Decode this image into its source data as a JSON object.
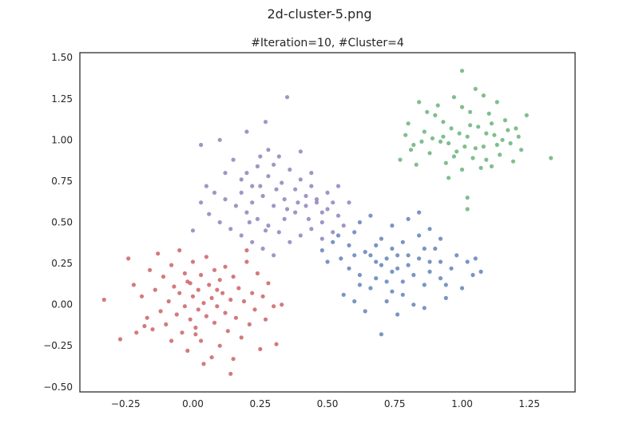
{
  "figure": {
    "suptitle": "2d-cluster-5.png"
  },
  "chart_data": {
    "type": "scatter",
    "title": "#Iteration=10, #Cluster=4",
    "xlabel": "",
    "ylabel": "",
    "xlim": [
      -0.42,
      1.42
    ],
    "ylim": [
      -0.53,
      1.53
    ],
    "x_ticks": [
      -0.25,
      0.0,
      0.25,
      0.5,
      0.75,
      1.0,
      1.25
    ],
    "x_tick_labels": [
      "−0.25",
      "0.00",
      "0.25",
      "0.50",
      "0.75",
      "1.00",
      "1.25"
    ],
    "y_ticks": [
      -0.5,
      -0.25,
      0.0,
      0.25,
      0.5,
      0.75,
      1.0,
      1.25,
      1.5
    ],
    "y_tick_labels": [
      "−0.50",
      "−0.25",
      "0.00",
      "0.25",
      "0.50",
      "0.75",
      "1.00",
      "1.25",
      "1.50"
    ],
    "grid": false,
    "legend": "none",
    "series": [
      {
        "color": "#c44e52",
        "points": [
          [
            -0.33,
            0.03
          ],
          [
            -0.27,
            -0.21
          ],
          [
            -0.24,
            0.28
          ],
          [
            -0.22,
            0.12
          ],
          [
            -0.21,
            -0.17
          ],
          [
            -0.19,
            0.05
          ],
          [
            -0.17,
            -0.08
          ],
          [
            -0.16,
            0.21
          ],
          [
            -0.15,
            -0.15
          ],
          [
            -0.14,
            0.09
          ],
          [
            -0.13,
            0.31
          ],
          [
            -0.12,
            -0.04
          ],
          [
            -0.11,
            0.17
          ],
          [
            -0.1,
            -0.12
          ],
          [
            -0.09,
            0.02
          ],
          [
            -0.08,
            0.24
          ],
          [
            -0.08,
            -0.22
          ],
          [
            -0.07,
            0.11
          ],
          [
            -0.06,
            -0.06
          ],
          [
            -0.05,
            0.33
          ],
          [
            -0.05,
            0.07
          ],
          [
            -0.04,
            -0.17
          ],
          [
            -0.03,
            0.19
          ],
          [
            -0.03,
            -0.01
          ],
          [
            -0.02,
            -0.28
          ],
          [
            -0.01,
            0.13
          ],
          [
            -0.01,
            -0.09
          ],
          [
            0.0,
            0.05
          ],
          [
            0.0,
            0.26
          ],
          [
            0.01,
            -0.14
          ],
          [
            0.02,
            0.09
          ],
          [
            0.02,
            -0.03
          ],
          [
            0.03,
            0.18
          ],
          [
            0.03,
            -0.22
          ],
          [
            0.04,
            0.01
          ],
          [
            0.05,
            0.29
          ],
          [
            0.05,
            -0.07
          ],
          [
            0.06,
            0.12
          ],
          [
            0.07,
            -0.32
          ],
          [
            0.07,
            0.04
          ],
          [
            0.08,
            0.21
          ],
          [
            0.08,
            -0.11
          ],
          [
            0.09,
            -0.01
          ],
          [
            0.1,
            0.15
          ],
          [
            0.1,
            -0.25
          ],
          [
            0.11,
            0.07
          ],
          [
            0.12,
            -0.05
          ],
          [
            0.12,
            0.23
          ],
          [
            0.13,
            -0.16
          ],
          [
            0.14,
            0.03
          ],
          [
            0.14,
            -0.42
          ],
          [
            0.15,
            0.17
          ],
          [
            0.16,
            -0.08
          ],
          [
            0.17,
            0.1
          ],
          [
            0.18,
            -0.2
          ],
          [
            0.19,
            0.02
          ],
          [
            0.2,
            0.26
          ],
          [
            0.21,
            -0.12
          ],
          [
            0.22,
            0.07
          ],
          [
            0.23,
            -0.03
          ],
          [
            0.24,
            0.19
          ],
          [
            0.25,
            -0.27
          ],
          [
            0.26,
            0.05
          ],
          [
            0.27,
            -0.09
          ],
          [
            0.28,
            0.13
          ],
          [
            0.3,
            -0.01
          ],
          [
            0.31,
            -0.24
          ],
          [
            0.33,
            0.0
          ],
          [
            0.2,
            0.33
          ],
          [
            0.15,
            -0.33
          ],
          [
            -0.18,
            -0.13
          ],
          [
            0.04,
            -0.36
          ],
          [
            -0.02,
            0.14
          ],
          [
            0.09,
            0.09
          ],
          [
            0.01,
            -0.18
          ]
        ]
      },
      {
        "color": "#8172b2",
        "points": [
          [
            0.03,
            0.97
          ],
          [
            0.1,
            1.0
          ],
          [
            0.2,
            1.05
          ],
          [
            0.27,
            1.11
          ],
          [
            0.35,
            1.26
          ],
          [
            0.4,
            0.93
          ],
          [
            0.44,
            0.8
          ],
          [
            0.3,
            0.85
          ],
          [
            0.25,
            0.9
          ],
          [
            0.15,
            0.88
          ],
          [
            0.12,
            0.8
          ],
          [
            0.18,
            0.76
          ],
          [
            0.22,
            0.72
          ],
          [
            0.28,
            0.78
          ],
          [
            0.33,
            0.74
          ],
          [
            0.38,
            0.7
          ],
          [
            0.42,
            0.66
          ],
          [
            0.46,
            0.62
          ],
          [
            0.5,
            0.58
          ],
          [
            0.54,
            0.54
          ],
          [
            0.48,
            0.5
          ],
          [
            0.44,
            0.46
          ],
          [
            0.4,
            0.42
          ],
          [
            0.36,
            0.38
          ],
          [
            0.32,
            0.44
          ],
          [
            0.28,
            0.48
          ],
          [
            0.24,
            0.52
          ],
          [
            0.2,
            0.56
          ],
          [
            0.16,
            0.6
          ],
          [
            0.12,
            0.64
          ],
          [
            0.08,
            0.68
          ],
          [
            0.05,
            0.72
          ],
          [
            0.03,
            0.62
          ],
          [
            0.06,
            0.55
          ],
          [
            0.1,
            0.5
          ],
          [
            0.14,
            0.46
          ],
          [
            0.18,
            0.42
          ],
          [
            0.22,
            0.38
          ],
          [
            0.26,
            0.34
          ],
          [
            0.3,
            0.3
          ],
          [
            0.34,
            0.52
          ],
          [
            0.38,
            0.56
          ],
          [
            0.42,
            0.6
          ],
          [
            0.46,
            0.64
          ],
          [
            0.5,
            0.68
          ],
          [
            0.54,
            0.72
          ],
          [
            0.58,
            0.62
          ],
          [
            0.56,
            0.48
          ],
          [
            0.52,
            0.44
          ],
          [
            0.48,
            0.4
          ],
          [
            0.34,
            0.64
          ],
          [
            0.3,
            0.6
          ],
          [
            0.26,
            0.66
          ],
          [
            0.22,
            0.62
          ],
          [
            0.18,
            0.68
          ],
          [
            0.36,
            0.82
          ],
          [
            0.32,
            0.9
          ],
          [
            0.28,
            0.94
          ],
          [
            0.24,
            0.84
          ],
          [
            0.2,
            0.8
          ],
          [
            0.4,
            0.76
          ],
          [
            0.44,
            0.72
          ],
          [
            0.48,
            0.56
          ],
          [
            0.52,
            0.62
          ],
          [
            0.0,
            0.45
          ],
          [
            0.27,
            0.45
          ],
          [
            0.35,
            0.58
          ],
          [
            0.31,
            0.7
          ],
          [
            0.39,
            0.62
          ],
          [
            0.25,
            0.72
          ],
          [
            0.21,
            0.5
          ],
          [
            0.43,
            0.52
          ]
        ]
      },
      {
        "color": "#4c72b0",
        "points": [
          [
            0.48,
            0.33
          ],
          [
            0.52,
            0.38
          ],
          [
            0.55,
            0.28
          ],
          [
            0.58,
            0.22
          ],
          [
            0.6,
            0.44
          ],
          [
            0.62,
            0.18
          ],
          [
            0.64,
            0.32
          ],
          [
            0.66,
            0.1
          ],
          [
            0.68,
            0.26
          ],
          [
            0.7,
            0.4
          ],
          [
            0.72,
            0.14
          ],
          [
            0.74,
            0.34
          ],
          [
            0.76,
            0.22
          ],
          [
            0.78,
            0.06
          ],
          [
            0.8,
            0.3
          ],
          [
            0.82,
            0.18
          ],
          [
            0.84,
            0.42
          ],
          [
            0.86,
            0.12
          ],
          [
            0.88,
            0.26
          ],
          [
            0.9,
            0.34
          ],
          [
            0.92,
            0.16
          ],
          [
            0.94,
            0.04
          ],
          [
            0.96,
            0.22
          ],
          [
            0.98,
            0.3
          ],
          [
            1.0,
            0.1
          ],
          [
            1.02,
            0.26
          ],
          [
            1.04,
            0.18
          ],
          [
            0.7,
            -0.18
          ],
          [
            0.56,
            0.06
          ],
          [
            0.6,
            0.02
          ],
          [
            0.62,
            0.5
          ],
          [
            0.66,
            0.54
          ],
          [
            0.74,
            0.48
          ],
          [
            0.8,
            0.52
          ],
          [
            0.84,
            0.56
          ],
          [
            0.88,
            0.46
          ],
          [
            0.92,
            0.4
          ],
          [
            0.64,
            -0.04
          ],
          [
            0.72,
            0.02
          ],
          [
            0.76,
            -0.06
          ],
          [
            0.82,
            0.0
          ],
          [
            0.86,
            -0.02
          ],
          [
            0.68,
            0.36
          ],
          [
            0.72,
            0.28
          ],
          [
            0.76,
            0.3
          ],
          [
            0.78,
            0.38
          ],
          [
            0.74,
            0.2
          ],
          [
            0.7,
            0.24
          ],
          [
            0.66,
            0.3
          ],
          [
            0.8,
            0.24
          ],
          [
            0.84,
            0.28
          ],
          [
            0.88,
            0.2
          ],
          [
            0.92,
            0.26
          ],
          [
            0.6,
            0.3
          ],
          [
            0.58,
            0.36
          ],
          [
            1.05,
            0.28
          ],
          [
            1.07,
            0.2
          ],
          [
            0.54,
            0.42
          ],
          [
            0.5,
            0.26
          ],
          [
            0.62,
            0.12
          ],
          [
            0.94,
            0.12
          ],
          [
            0.78,
            0.14
          ],
          [
            0.68,
            0.16
          ],
          [
            0.86,
            0.34
          ],
          [
            0.74,
            0.08
          ]
        ]
      },
      {
        "color": "#55a868",
        "points": [
          [
            0.77,
            0.88
          ],
          [
            0.8,
            1.1
          ],
          [
            0.82,
            0.97
          ],
          [
            0.84,
            1.23
          ],
          [
            0.86,
            1.05
          ],
          [
            0.88,
            0.92
          ],
          [
            0.9,
            1.15
          ],
          [
            0.92,
            0.99
          ],
          [
            0.94,
            0.86
          ],
          [
            0.96,
            1.07
          ],
          [
            0.98,
            0.93
          ],
          [
            1.0,
            1.2
          ],
          [
            1.0,
            0.82
          ],
          [
            1.02,
            1.02
          ],
          [
            1.02,
            0.65
          ],
          [
            1.04,
            0.89
          ],
          [
            1.05,
            1.31
          ],
          [
            1.06,
            1.08
          ],
          [
            1.08,
            0.96
          ],
          [
            1.1,
            1.16
          ],
          [
            1.11,
            0.84
          ],
          [
            1.12,
            1.03
          ],
          [
            1.14,
            0.91
          ],
          [
            1.16,
            1.12
          ],
          [
            1.18,
            0.98
          ],
          [
            1.2,
            1.07
          ],
          [
            1.22,
            0.94
          ],
          [
            1.24,
            1.15
          ],
          [
            1.33,
            0.89
          ],
          [
            1.0,
            1.42
          ],
          [
            1.02,
            0.58
          ],
          [
            0.95,
            0.77
          ],
          [
            1.08,
            1.27
          ],
          [
            1.13,
            1.23
          ],
          [
            0.83,
            0.85
          ],
          [
            0.87,
            1.17
          ],
          [
            0.91,
            1.21
          ],
          [
            0.97,
            1.26
          ],
          [
            1.03,
            1.17
          ],
          [
            1.07,
            0.83
          ],
          [
            1.09,
            0.88
          ],
          [
            1.15,
            1.0
          ],
          [
            1.19,
            0.87
          ],
          [
            1.21,
            1.02
          ],
          [
            0.85,
            0.99
          ],
          [
            0.89,
            1.01
          ],
          [
            0.93,
            1.11
          ],
          [
            0.99,
            1.04
          ],
          [
            1.01,
            0.96
          ],
          [
            1.05,
            0.95
          ],
          [
            1.11,
            1.1
          ],
          [
            1.17,
            1.06
          ],
          [
            0.79,
            1.03
          ],
          [
            0.81,
            0.94
          ],
          [
            0.95,
            0.98
          ],
          [
            1.03,
            1.09
          ],
          [
            0.97,
            0.9
          ],
          [
            1.09,
            1.04
          ],
          [
            1.13,
            0.97
          ],
          [
            0.93,
            1.02
          ]
        ]
      }
    ]
  }
}
